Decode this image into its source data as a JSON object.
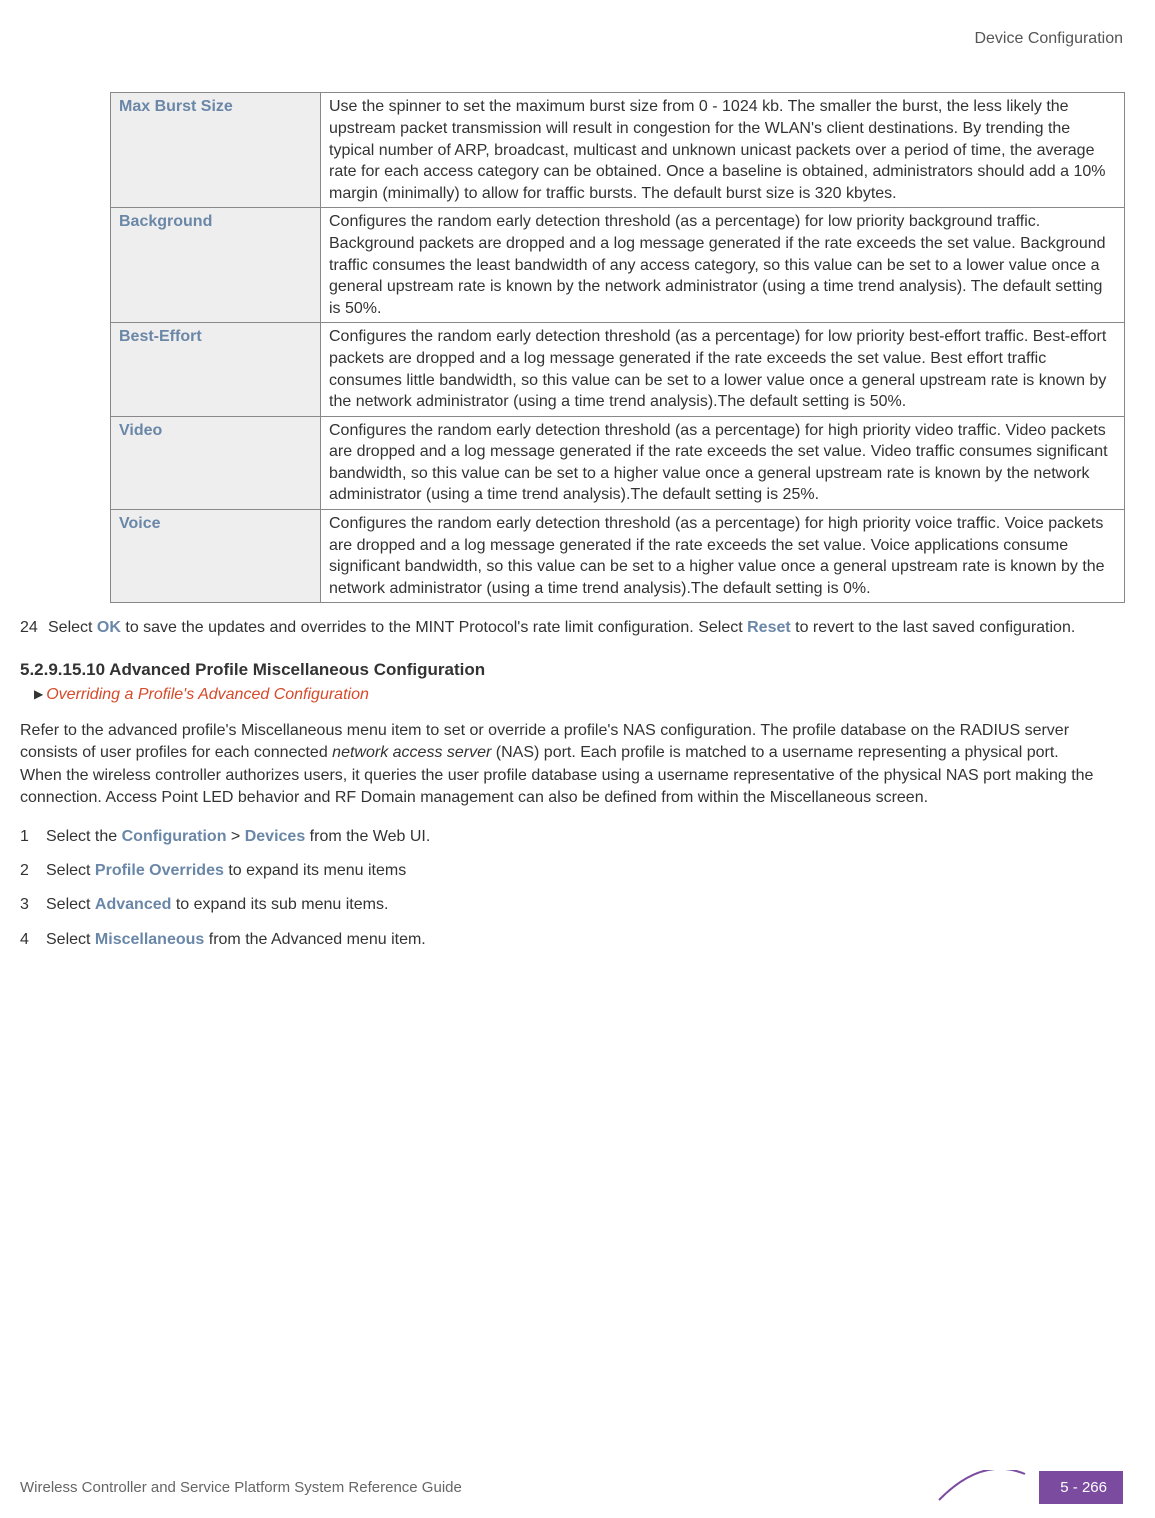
{
  "header": {
    "running_head": "Device Configuration"
  },
  "table": {
    "rows": [
      {
        "label": "Max Burst Size",
        "desc": "Use the spinner to set the maximum burst size from 0 - 1024 kb. The smaller the burst, the less likely the upstream packet transmission will result in congestion for the WLAN's client destinations. By trending the typical number of ARP, broadcast, multicast and unknown unicast packets over a period of time, the average rate for each access category can be obtained. Once a baseline is obtained, administrators should add a 10% margin (minimally) to allow for traffic bursts. The default burst size is 320 kbytes."
      },
      {
        "label": "Background",
        "desc": "Configures the random early detection threshold (as a percentage) for low priority background traffic. Background packets are dropped and a log message generated if the rate exceeds the set value. Background traffic consumes the least bandwidth of any access category, so this value can be set to a lower value once a general upstream rate is known by the network administrator (using a time trend analysis). The default setting\nis 50%."
      },
      {
        "label": "Best-Effort",
        "desc": "Configures the random early detection threshold (as a percentage) for low priority best-effort traffic. Best-effort packets are dropped and a log message generated if the rate exceeds the set value. Best effort traffic consumes little bandwidth, so this value can be set to a lower value once a general upstream rate is known by the network administrator (using a time trend analysis).The default setting is 50%."
      },
      {
        "label": "Video",
        "desc": "Configures the random early detection threshold (as a percentage) for high priority video traffic. Video packets are dropped and a log message generated if the rate exceeds the set value. Video traffic consumes significant bandwidth, so this value can be set to a higher value once a general upstream rate is known by the network administrator (using a time trend analysis).The default setting is 25%."
      },
      {
        "label": "Voice",
        "desc": "Configures the random early detection threshold (as a percentage) for high priority voice traffic. Voice packets are dropped and a log message generated if the rate exceeds the set value. Voice applications consume significant bandwidth, so this value can be set to a higher value once a general upstream rate is known by the network administrator (using a time trend analysis).The default setting is 0%."
      }
    ]
  },
  "step24": {
    "num": "24",
    "pre": "Select ",
    "ok": "OK",
    "mid": " to save the updates and overrides to the MINT Protocol's rate limit configuration. Select ",
    "reset": "Reset",
    "post": " to revert to the last saved configuration."
  },
  "section": {
    "heading": "5.2.9.15.10 Advanced Profile Miscellaneous Configuration",
    "breadcrumb_link": "Overriding a Profile's Advanced Configuration"
  },
  "intro": {
    "p1a": "Refer to the advanced profile's Miscellaneous menu item to set or override a profile's NAS configuration. The profile database on the RADIUS server consists of user profiles for each connected ",
    "p1_em": "network access server",
    "p1b": " (NAS) port. Each profile is matched to a username representing a physical port. When the wireless controller authorizes users, it queries the user profile database using a username representative of the physical NAS port making the connection. Access Point LED behavior and RF Domain management can also be defined from within the Miscellaneous screen."
  },
  "steps": [
    {
      "n": "1",
      "a": "Select the ",
      "b1": "Configuration",
      "mid": " > ",
      "b2": "Devices",
      "c": " from the Web UI."
    },
    {
      "n": "2",
      "a": "Select ",
      "b1": "Profile Overrides",
      "mid": "",
      "b2": "",
      "c": " to expand its menu items"
    },
    {
      "n": "3",
      "a": "Select ",
      "b1": "Advanced",
      "mid": "",
      "b2": "",
      "c": " to expand its sub menu items."
    },
    {
      "n": "4",
      "a": "Select ",
      "b1": "Miscellaneous",
      "mid": "",
      "b2": "",
      "c": " from the Advanced menu item."
    }
  ],
  "footer": {
    "guide": "Wireless Controller and Service Platform System Reference Guide",
    "page": "5 - 266",
    "swoosh_color": "#7b4ba0"
  }
}
